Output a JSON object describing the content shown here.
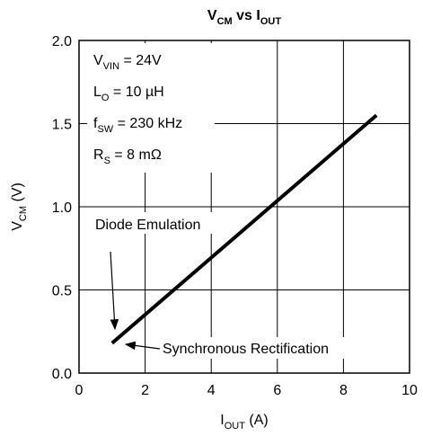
{
  "chart_data": {
    "type": "line",
    "title": [
      "V",
      "CM",
      " vs I",
      "OUT"
    ],
    "x_label": [
      "I",
      "OUT",
      " (A)"
    ],
    "y_label": [
      "V",
      "CM",
      " (V)"
    ],
    "x": [
      1,
      9
    ],
    "values": [
      0.18,
      1.55
    ],
    "color": "#000000",
    "xlim": [
      0,
      10
    ],
    "xticks": [
      0,
      2,
      4,
      6,
      8,
      10
    ],
    "ylim": [
      0,
      2
    ],
    "yticks": [
      {
        "value": 0,
        "label": "0.0"
      },
      0.5,
      {
        "value": 1,
        "label": "1.0"
      },
      1.5,
      {
        "value": 2,
        "label": "2.0"
      }
    ],
    "grid": true,
    "conditions": [
      [
        "V",
        "VIN",
        " = 24V"
      ],
      [
        "L",
        "O",
        " = 10 µH"
      ],
      [
        "f",
        "SW",
        " = 230 kHz"
      ],
      [
        "R",
        "S",
        " = 8 mΩ"
      ]
    ],
    "annotations": [
      "Diode Emulation",
      "Synchronous Rectification"
    ]
  }
}
